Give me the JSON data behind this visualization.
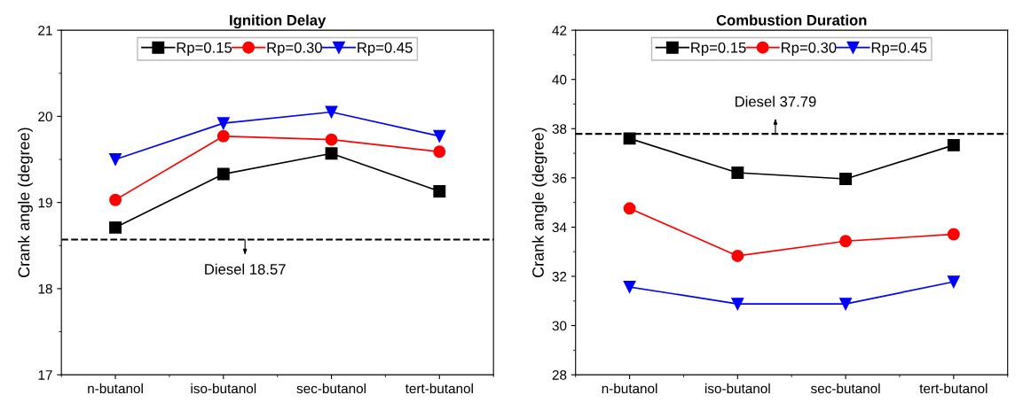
{
  "chart_data": [
    {
      "type": "line",
      "title": "Ignition Delay",
      "ylabel": "Crank angle (degree)",
      "categories": [
        "n-butanol",
        "iso-butanol",
        "sec-butanol",
        "tert-butanol"
      ],
      "series": [
        {
          "name": "Rp=0.15",
          "color": "#000000",
          "marker": "square",
          "values": [
            18.71,
            19.33,
            19.57,
            19.13
          ]
        },
        {
          "name": "Rp=0.30",
          "color": "#ff0000",
          "marker": "circle",
          "values": [
            19.03,
            19.77,
            19.73,
            19.59
          ]
        },
        {
          "name": "Rp=0.45",
          "color": "#0000ff",
          "marker": "triangle",
          "values": [
            19.5,
            19.92,
            20.05,
            19.77
          ]
        }
      ],
      "ylim": [
        17,
        21
      ],
      "yticks": [
        17,
        18,
        19,
        20,
        21
      ],
      "grid": false,
      "legend": "top",
      "line_style": "solid",
      "ref_lines": [
        {
          "axis": "y",
          "value": 18.57,
          "label": "Diesel 18.57",
          "color": "#000000",
          "line_style": "dashed"
        }
      ]
    },
    {
      "type": "line",
      "title": "Combustion Duration",
      "ylabel": "Crank angle (degree)",
      "categories": [
        "n-butanol",
        "iso-butanol",
        "sec-butanol",
        "tert-butanol"
      ],
      "series": [
        {
          "name": "Rp=0.15",
          "color": "#000000",
          "marker": "square",
          "values": [
            37.6,
            36.21,
            35.96,
            37.33
          ]
        },
        {
          "name": "Rp=0.30",
          "color": "#ff0000",
          "marker": "circle",
          "values": [
            34.76,
            32.83,
            33.43,
            33.71
          ]
        },
        {
          "name": "Rp=0.45",
          "color": "#0000ff",
          "marker": "triangle",
          "values": [
            31.57,
            30.88,
            30.88,
            31.78
          ]
        }
      ],
      "ylim": [
        28,
        42
      ],
      "yticks": [
        28,
        30,
        32,
        34,
        36,
        38,
        40,
        42
      ],
      "grid": false,
      "legend": "top",
      "line_style": "solid",
      "ref_lines": [
        {
          "axis": "y",
          "value": 37.79,
          "label": "Diesel 37.79",
          "color": "#000000",
          "line_style": "dashed"
        }
      ]
    }
  ]
}
